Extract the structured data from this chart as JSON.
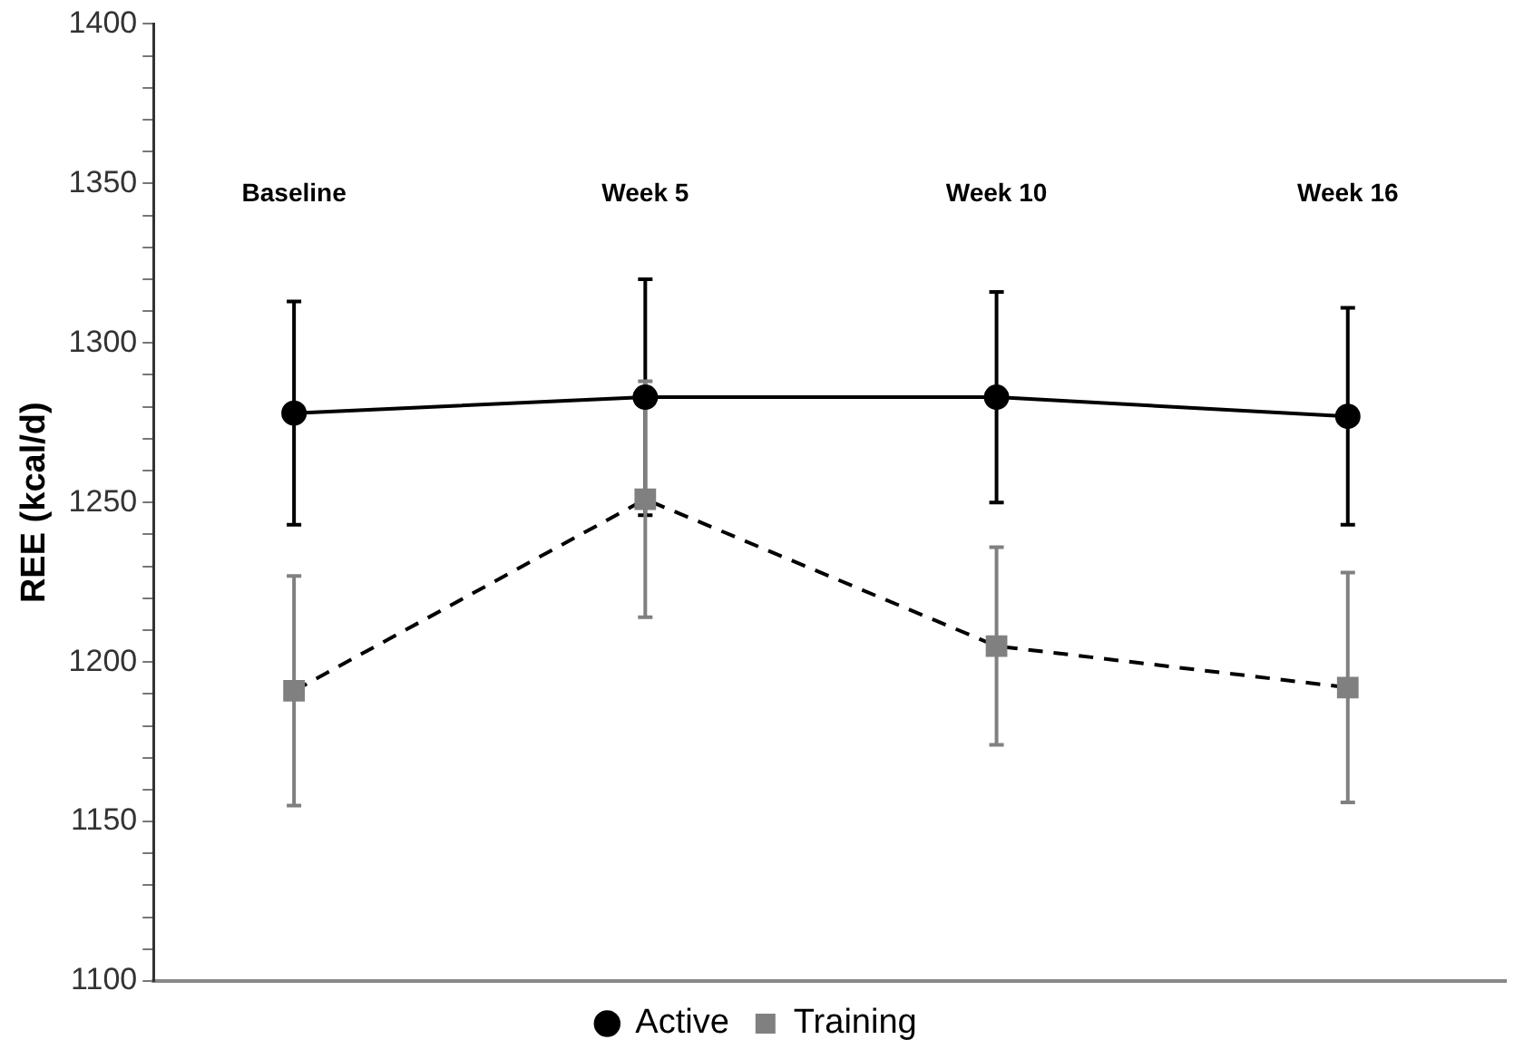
{
  "chart_data": {
    "type": "line",
    "ylabel": "REE (kcal/d)",
    "categories": [
      "Baseline",
      "Week 5",
      "Week 10",
      "Week 16"
    ],
    "ylim": [
      1100,
      1400
    ],
    "yticks": [
      1100,
      {
        "value": 1110,
        "label": null
      },
      {
        "value": 1120,
        "label": null
      },
      {
        "value": 1130,
        "label": null
      },
      {
        "value": 1140,
        "label": null
      },
      1150,
      {
        "value": 1160,
        "label": null
      },
      {
        "value": 1170,
        "label": null
      },
      {
        "value": 1180,
        "label": null
      },
      {
        "value": 1190,
        "label": null
      },
      1200,
      {
        "value": 1210,
        "label": null
      },
      {
        "value": 1220,
        "label": null
      },
      {
        "value": 1230,
        "label": null
      },
      {
        "value": 1240,
        "label": null
      },
      1250,
      {
        "value": 1260,
        "label": null
      },
      {
        "value": 1270,
        "label": null
      },
      {
        "value": 1280,
        "label": null
      },
      {
        "value": 1290,
        "label": null
      },
      1300,
      {
        "value": 1310,
        "label": null
      },
      {
        "value": 1320,
        "label": null
      },
      {
        "value": 1330,
        "label": null
      },
      {
        "value": 1340,
        "label": null
      },
      1350,
      {
        "value": 1360,
        "label": null
      },
      {
        "value": 1370,
        "label": null
      },
      {
        "value": 1380,
        "label": null
      },
      {
        "value": 1390,
        "label": null
      },
      1400
    ],
    "series": [
      {
        "name": "Active",
        "color": "#000000",
        "marker": "circle",
        "line_style": "solid",
        "values": [
          1278,
          1283,
          1283,
          1277
        ],
        "errors": [
          35,
          37,
          33,
          34
        ]
      },
      {
        "name": "Training",
        "color": "#808080",
        "marker": "square",
        "line_style": "dashed",
        "values": [
          1191,
          1251,
          1205,
          1192
        ],
        "errors": [
          36,
          37,
          31,
          36
        ]
      }
    ],
    "grid": false,
    "legend": "bottom"
  }
}
